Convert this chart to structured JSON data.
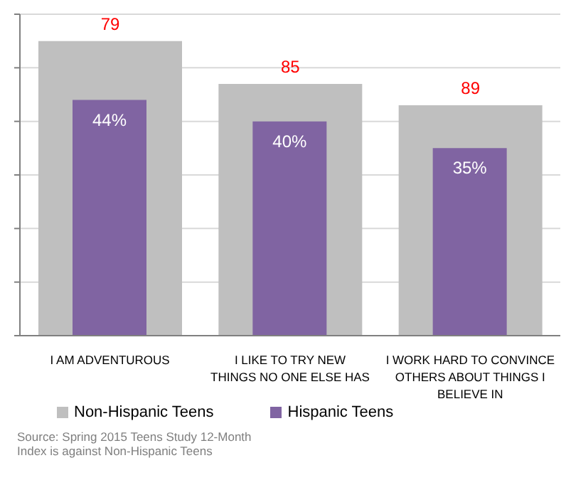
{
  "chart_data": {
    "type": "bar",
    "categories": [
      "I AM ADVENTUROUS",
      "I LIKE TO TRY NEW THINGS NO ONE ELSE HAS",
      "I WORK HARD TO CONVINCE OTHERS ABOUT THINGS I BELIEVE IN"
    ],
    "series": [
      {
        "name": "Non-Hispanic Teens",
        "color": "#bfbfbf",
        "values": [
          55,
          47,
          43
        ]
      },
      {
        "name": "Hispanic Teens",
        "color": "#8064a2",
        "values": [
          44,
          40,
          35
        ],
        "value_labels": [
          "44%",
          "40%",
          "35%"
        ]
      }
    ],
    "ylim": [
      0,
      60
    ],
    "yticks": [
      {
        "value": 0,
        "label": null
      },
      {
        "value": 10,
        "label": null
      },
      {
        "value": 20,
        "label": null
      },
      {
        "value": 30,
        "label": null
      },
      {
        "value": 40,
        "label": null
      },
      {
        "value": 50,
        "label": null
      },
      {
        "value": 60,
        "label": null
      }
    ],
    "tick_labels": "x",
    "grid": "y",
    "legend": "bottom",
    "annotations": [
      {
        "text": "79",
        "x": "I AM ADVENTUROUS",
        "y": 55
      },
      {
        "text": "85",
        "x": "I LIKE TO TRY NEW THINGS NO ONE ELSE HAS",
        "y": 47
      },
      {
        "text": "89",
        "x": "I WORK HARD TO CONVINCE OTHERS ABOUT THINGS I BELIEVE IN",
        "y": 43
      },
      "Source: Spring 2015 Teens Study 12-Month",
      "Index is against Non-Hispanic Teens"
    ]
  }
}
